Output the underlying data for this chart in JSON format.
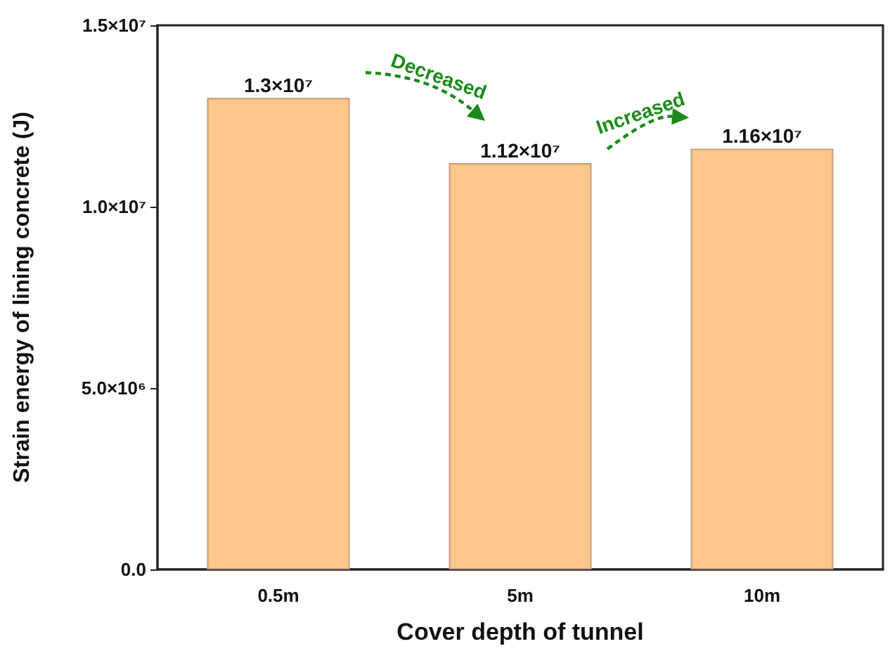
{
  "chart_data": {
    "type": "bar",
    "xlabel": "Cover depth of tunnel",
    "ylabel": "Strain energy of lining concrete (J)",
    "categories": [
      "0.5m",
      "5m",
      "10m"
    ],
    "values": [
      13000000,
      11200000,
      11600000
    ],
    "value_labels": [
      "1.3×10⁷",
      "1.12×10⁷",
      "1.16×10⁷"
    ],
    "color": "#fdc68a",
    "ylim": [
      0,
      15000000
    ],
    "yticks": [
      {
        "value": 0,
        "label": "0.0"
      },
      {
        "value": 5000000,
        "label": "5.0×10⁶"
      },
      {
        "value": 10000000,
        "label": "1.0×10⁷"
      },
      {
        "value": 15000000,
        "label": "1.5×10⁷"
      }
    ],
    "annotations": [
      "Decreased",
      "Increased"
    ],
    "grid": false
  }
}
